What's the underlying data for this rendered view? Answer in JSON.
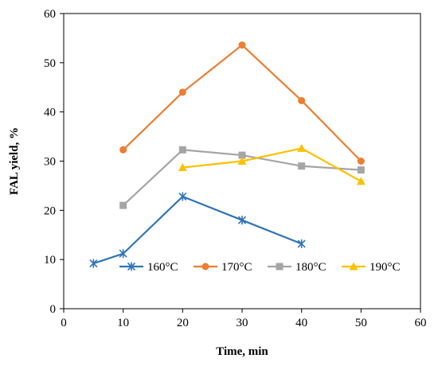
{
  "chart_data": {
    "type": "line",
    "xlabel": "Time, min",
    "ylabel": "FAL yield, %",
    "xlim": [
      0,
      60
    ],
    "ylim": [
      0,
      60
    ],
    "xticks": [
      "0",
      "10",
      "20",
      "30",
      "40",
      "50",
      "60"
    ],
    "yticks": [
      "0",
      "10",
      "20",
      "30",
      "40",
      "50",
      "60"
    ],
    "grid": false,
    "legend_position": "bottom-right",
    "series": [
      {
        "name": "160°C",
        "color": "#2E75B6",
        "marker": "asterisk",
        "points": [
          [
            5,
            9.2
          ],
          [
            10,
            11.2
          ],
          [
            20,
            22.8
          ],
          [
            30,
            18.0
          ],
          [
            40,
            13.2
          ]
        ]
      },
      {
        "name": "170°C",
        "color": "#ED7D31",
        "marker": "circle",
        "points": [
          [
            10,
            32.3
          ],
          [
            20,
            44.0
          ],
          [
            30,
            53.6
          ],
          [
            40,
            42.3
          ],
          [
            50,
            30.0
          ]
        ]
      },
      {
        "name": "180°C",
        "color": "#A5A5A5",
        "marker": "square",
        "points": [
          [
            10,
            21.0
          ],
          [
            20,
            32.3
          ],
          [
            30,
            31.2
          ],
          [
            40,
            29.0
          ],
          [
            50,
            28.2
          ]
        ]
      },
      {
        "name": "190°C",
        "color": "#FFC000",
        "marker": "triangle",
        "points": [
          [
            20,
            28.7
          ],
          [
            30,
            30.0
          ],
          [
            40,
            32.6
          ],
          [
            50,
            25.9
          ]
        ]
      }
    ]
  }
}
